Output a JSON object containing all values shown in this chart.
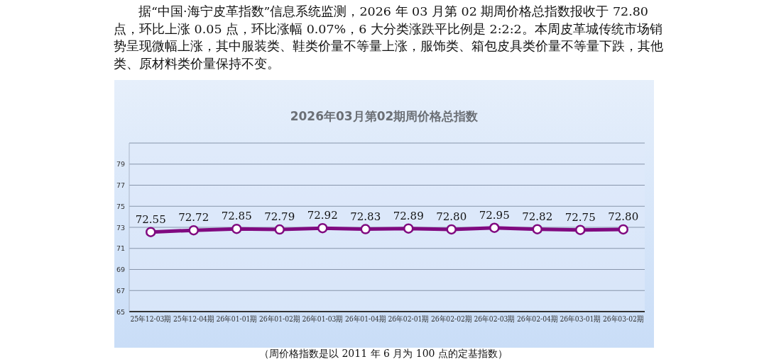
{
  "chart_data": {
    "type": "line",
    "title": "2026年03月第02期周价格总指数",
    "annotations": [
      "据“中国·海宁皮革指数”信息系统监测，2026 年 03 月第 02 期周价格总指数报收于 72.80 点，环比上涨 0.05 点，环比涨幅 0.07%，6 大分类涨跌平比例是 2:2:2。本周皮革城传统市场销势呈现微幅上涨，其中服装类、鞋类价量不等量上涨，服饰类、箱包皮具类价量不等量下跌，其他类、原材料类价量保持不变。",
      "（周价格指数是以 2011 年 6 月为 100 点的定基指数）"
    ],
    "categories": [
      "25年12-03期",
      "25年12-04期",
      "26年01-01期",
      "26年01-02期",
      "26年01-03期",
      "26年01-04期",
      "26年02-01期",
      "26年02-02期",
      "26年02-03期",
      "26年02-04期",
      "26年03-01期",
      "26年03-02期"
    ],
    "series": [
      {
        "color": "#800a80",
        "values": [
          72.55,
          72.72,
          72.85,
          72.79,
          72.92,
          72.83,
          72.89,
          72.8,
          72.95,
          72.82,
          72.75,
          72.8
        ],
        "value_labels": [
          "72.55",
          "72.72",
          "72.85",
          "72.79",
          "72.92",
          "72.83",
          "72.89",
          "72.80",
          "72.95",
          "72.82",
          "72.75",
          "72.80"
        ]
      }
    ],
    "ylim": [
      65,
      81
    ],
    "yticks": [
      65,
      67,
      69,
      71,
      73,
      75,
      77,
      79,
      {
        "value": 81,
        "label": null
      }
    ],
    "grid": "y",
    "marker": "circle",
    "line_style": "solid"
  }
}
